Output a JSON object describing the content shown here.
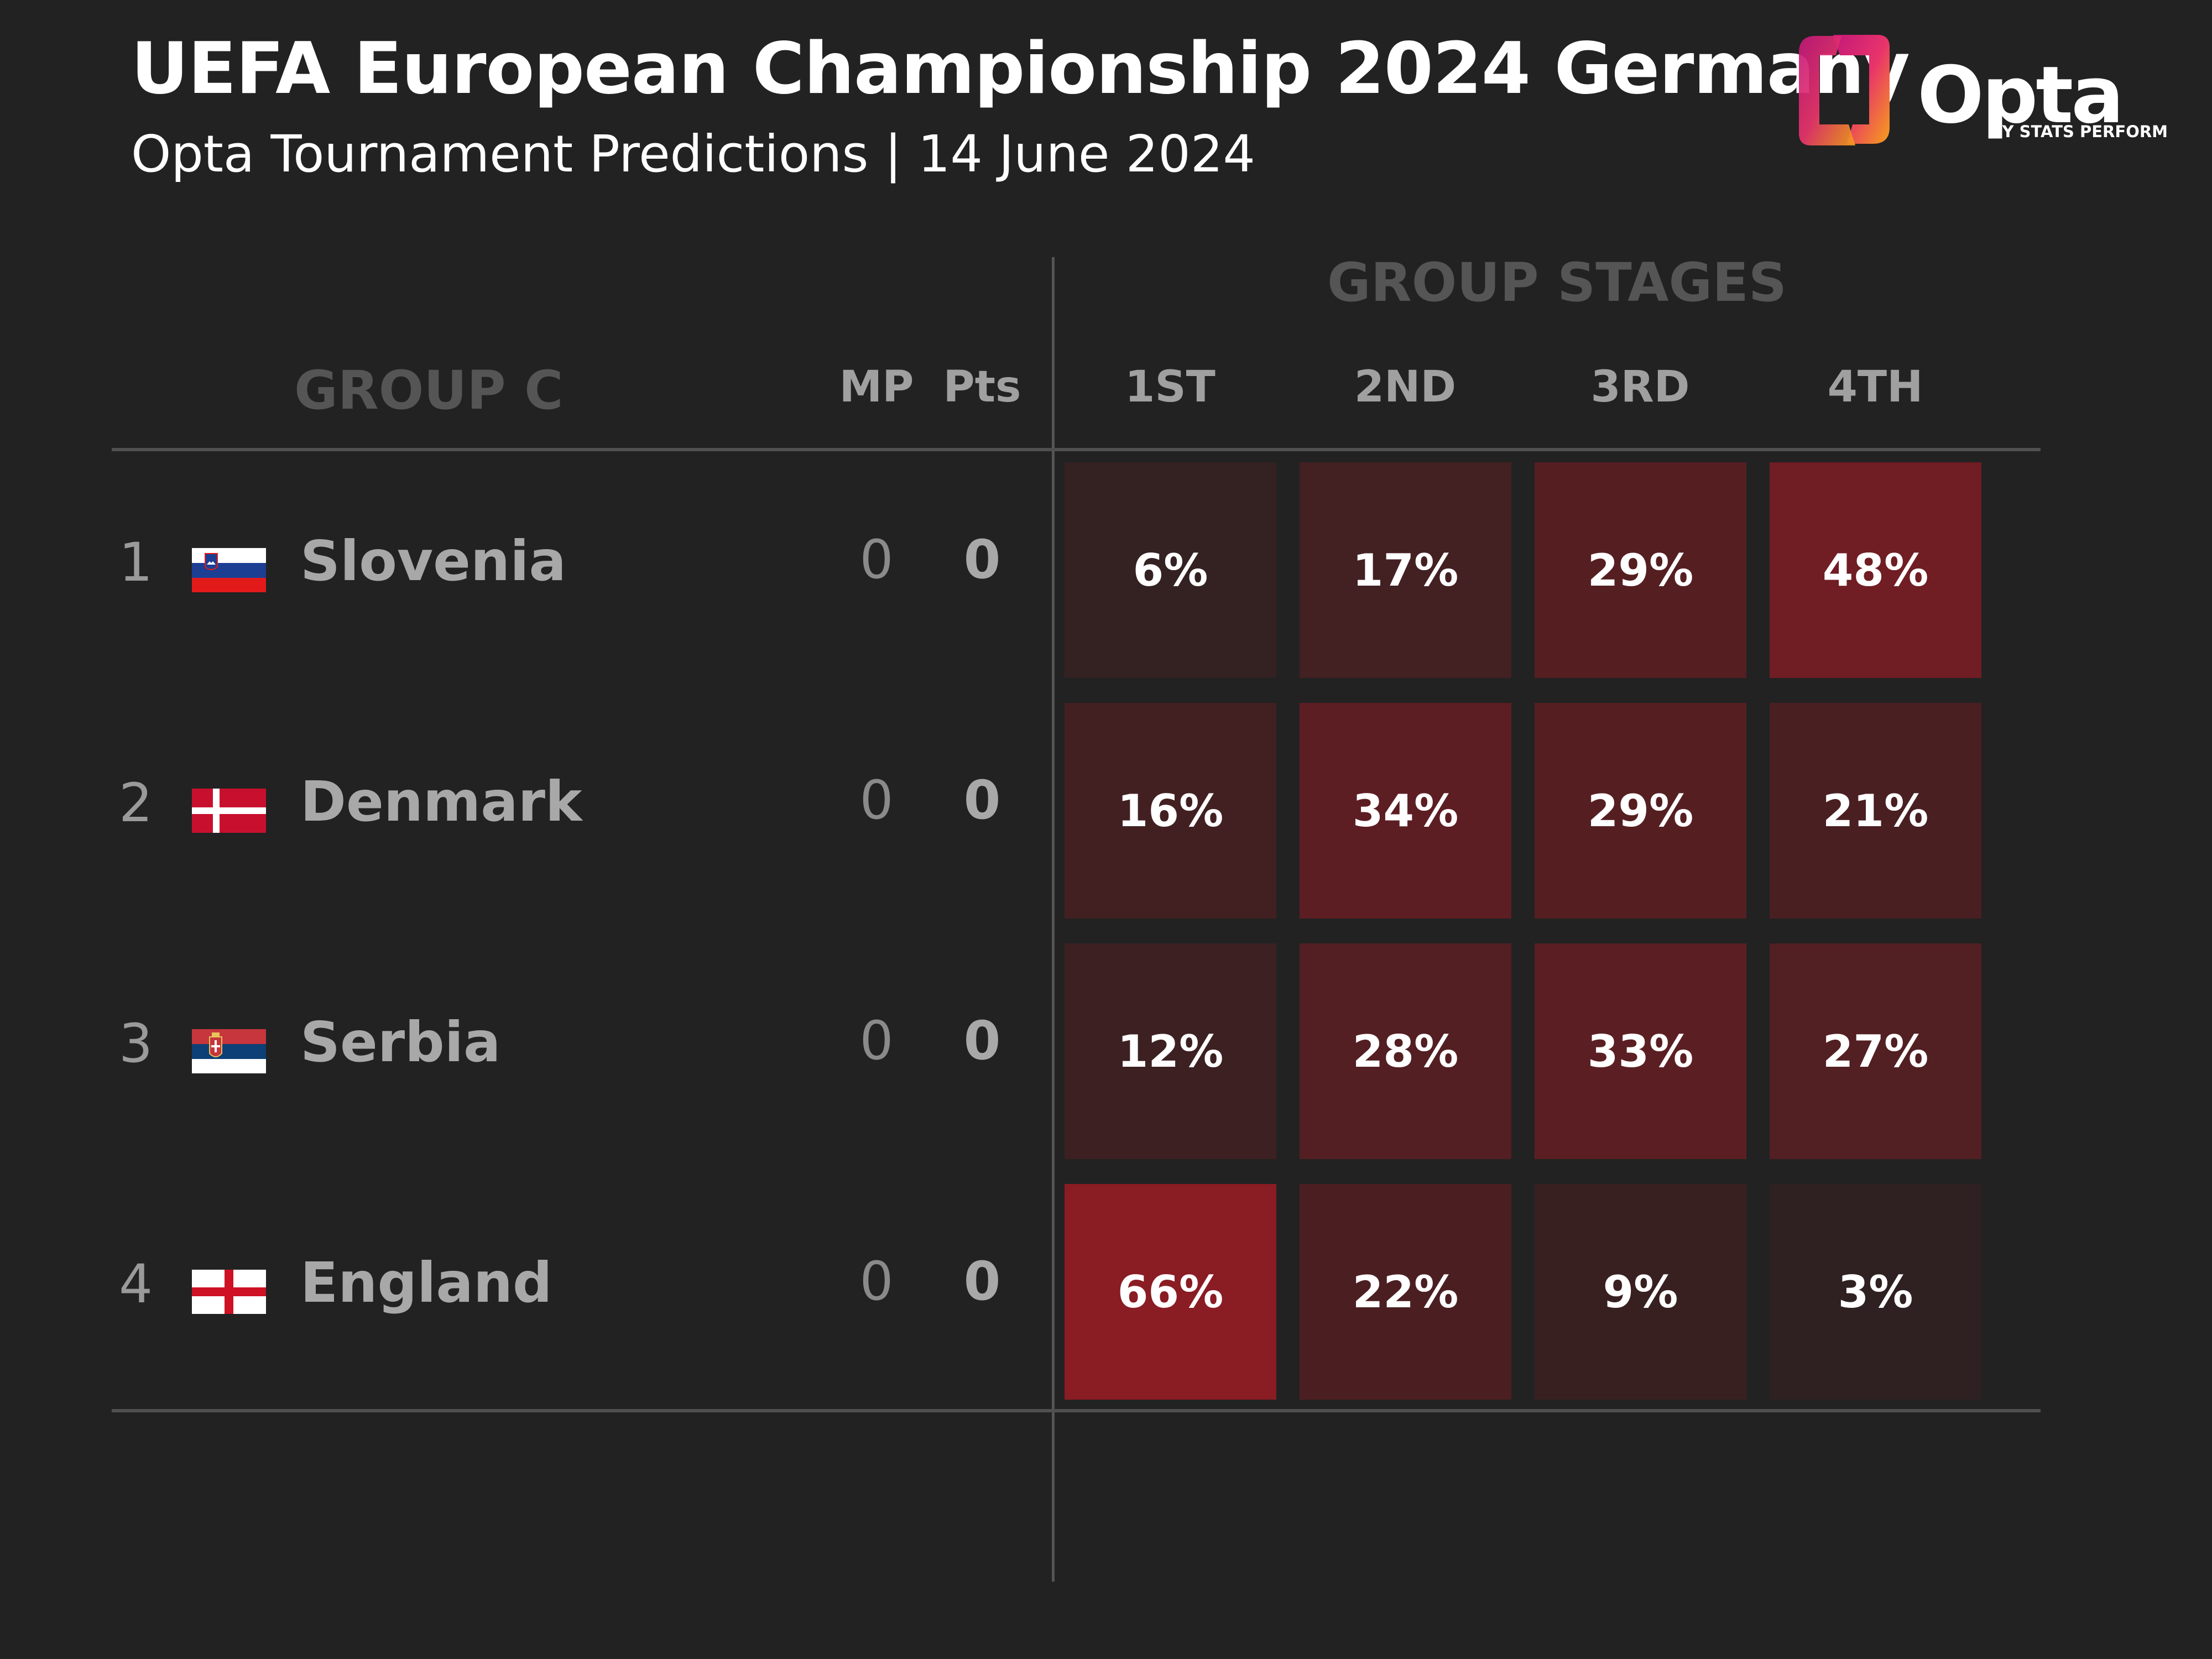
{
  "header": {
    "title": "UEFA European Championship 2024 Germany",
    "subtitle": "Opta Tournament Predictions | 14 June 2024"
  },
  "logo": {
    "word": "Opta",
    "by": "BY STATS PERFORM"
  },
  "table": {
    "group_label": "GROUP C",
    "group_stages_label": "GROUP STAGES",
    "columns": {
      "mp": "MP",
      "pts": "Pts",
      "first": "1ST",
      "second": "2ND",
      "third": "3RD",
      "fourth": "4TH"
    }
  },
  "colors": {
    "background": "#222222",
    "cell_low": "#2b2121",
    "cell_high": "#8a1c24"
  },
  "chart_data": {
    "type": "table",
    "title": "UEFA European Championship 2024 Germany",
    "subtitle": "Opta Tournament Predictions | 14 June 2024",
    "group": "GROUP C",
    "columns": [
      "MP",
      "Pts",
      "1ST",
      "2ND",
      "3RD",
      "4TH"
    ],
    "rows": [
      {
        "rank": "1",
        "team": "Slovenia",
        "flag": "slovenia-flag",
        "mp": "0",
        "pts": "0",
        "probabilities": [
          6,
          17,
          29,
          48
        ],
        "labels": [
          "6%",
          "17%",
          "29%",
          "48%"
        ]
      },
      {
        "rank": "2",
        "team": "Denmark",
        "flag": "denmark-flag",
        "mp": "0",
        "pts": "0",
        "probabilities": [
          16,
          34,
          29,
          21
        ],
        "labels": [
          "16%",
          "34%",
          "29%",
          "21%"
        ]
      },
      {
        "rank": "3",
        "team": "Serbia",
        "flag": "serbia-flag",
        "mp": "0",
        "pts": "0",
        "probabilities": [
          12,
          28,
          33,
          27
        ],
        "labels": [
          "12%",
          "28%",
          "33%",
          "27%"
        ]
      },
      {
        "rank": "4",
        "team": "England",
        "flag": "england-flag",
        "mp": "0",
        "pts": "0",
        "probabilities": [
          66,
          22,
          9,
          3
        ],
        "labels": [
          "66%",
          "22%",
          "9%",
          "3%"
        ]
      }
    ]
  }
}
